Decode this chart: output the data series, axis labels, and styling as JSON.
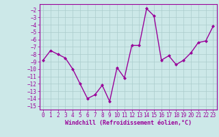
{
  "x": [
    0,
    1,
    2,
    3,
    4,
    5,
    6,
    7,
    8,
    9,
    10,
    11,
    12,
    13,
    14,
    15,
    16,
    17,
    18,
    19,
    20,
    21,
    22,
    23
  ],
  "y": [
    -8.8,
    -7.5,
    -8.0,
    -8.5,
    -10.0,
    -12.0,
    -14.0,
    -13.5,
    -12.2,
    -14.4,
    -9.8,
    -11.2,
    -6.8,
    -6.8,
    -1.8,
    -2.8,
    -8.8,
    -8.2,
    -9.4,
    -8.8,
    -7.8,
    -6.4,
    -6.2,
    -4.2
  ],
  "line_color": "#990099",
  "marker": "D",
  "marker_size": 2,
  "bg_color": "#cce8e8",
  "grid_color": "#aacccc",
  "xlabel": "Windchill (Refroidissement éolien,°C)",
  "ylim": [
    -15.5,
    -1.2
  ],
  "xlim": [
    -0.5,
    23.5
  ],
  "yticks": [
    -15,
    -14,
    -13,
    -12,
    -11,
    -10,
    -9,
    -8,
    -7,
    -6,
    -5,
    -4,
    -3,
    -2
  ],
  "xticks": [
    0,
    1,
    2,
    3,
    4,
    5,
    6,
    7,
    8,
    9,
    10,
    11,
    12,
    13,
    14,
    15,
    16,
    17,
    18,
    19,
    20,
    21,
    22,
    23
  ],
  "tick_fontsize": 5.5,
  "xlabel_fontsize": 6.0,
  "linewidth": 1.0
}
